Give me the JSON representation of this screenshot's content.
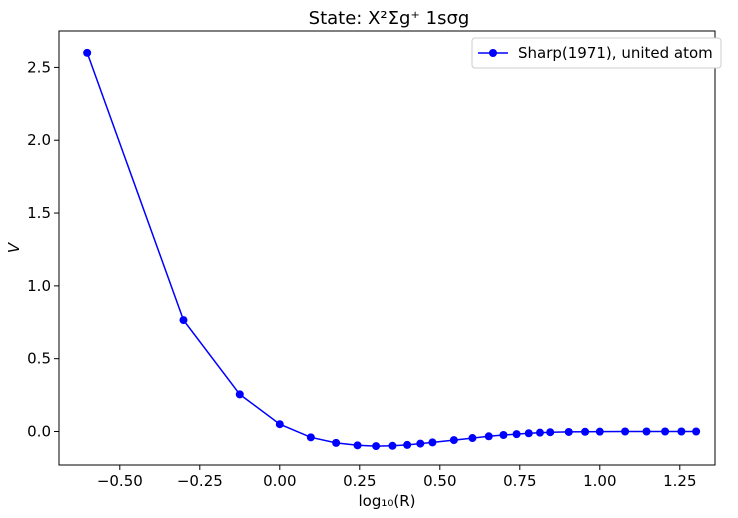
{
  "chart_data": {
    "type": "line",
    "title": "State: X²Σg⁺ 1sσg",
    "xlabel": "log₁₀(R)",
    "ylabel": "V",
    "xlim": [
      -0.69,
      1.36
    ],
    "ylim": [
      -0.23,
      2.75
    ],
    "x_ticks": [
      -0.5,
      -0.25,
      0.0,
      0.25,
      0.5,
      0.75,
      1.0,
      1.25
    ],
    "x_tick_labels": [
      "−0.50",
      "−0.25",
      "0.00",
      "0.25",
      "0.50",
      "0.75",
      "1.00",
      "1.25"
    ],
    "y_ticks": [
      0.0,
      0.5,
      1.0,
      1.5,
      2.0,
      2.5
    ],
    "y_tick_labels": [
      "0.0",
      "0.5",
      "1.0",
      "1.5",
      "2.0",
      "2.5"
    ],
    "grid": false,
    "legend_position": "top-right",
    "series": [
      {
        "name": "Sharp(1971), united atom",
        "color": "#0000ff",
        "marker": "circle",
        "x": [
          -0.602,
          -0.301,
          -0.125,
          0.0,
          0.097,
          0.176,
          0.243,
          0.301,
          0.352,
          0.398,
          0.439,
          0.477,
          0.544,
          0.602,
          0.653,
          0.699,
          0.74,
          0.778,
          0.813,
          0.845,
          0.903,
          0.954,
          1.0,
          1.079,
          1.146,
          1.204,
          1.255,
          1.301
        ],
        "y": [
          2.6,
          0.765,
          0.255,
          0.05,
          -0.04,
          -0.078,
          -0.095,
          -0.1,
          -0.098,
          -0.092,
          -0.083,
          -0.075,
          -0.059,
          -0.045,
          -0.033,
          -0.024,
          -0.018,
          -0.012,
          -0.008,
          -0.005,
          -0.003,
          -0.002,
          -0.001,
          0.0,
          0.0,
          0.0,
          0.0,
          0.0
        ]
      }
    ]
  }
}
